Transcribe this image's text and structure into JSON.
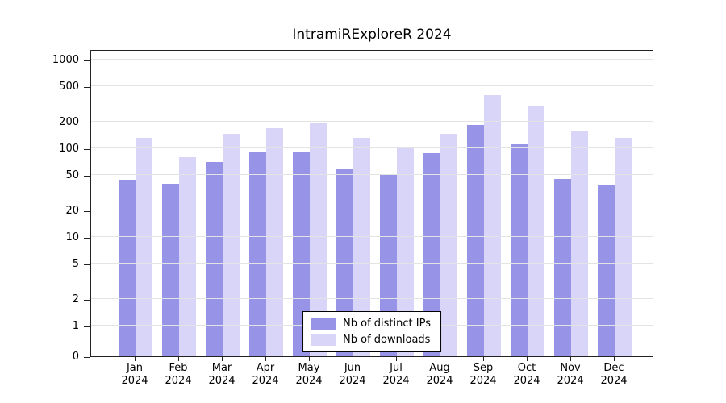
{
  "chart_data": {
    "type": "bar",
    "title": "IntramiRExploreR 2024",
    "categories": [
      "Jan 2024",
      "Feb 2024",
      "Mar 2024",
      "Apr 2024",
      "May 2024",
      "Jun 2024",
      "Jul 2024",
      "Aug 2024",
      "Sep 2024",
      "Oct 2024",
      "Nov 2024",
      "Dec 2024"
    ],
    "series": [
      {
        "name": "Nb of distinct IPs",
        "color": "#9794e8",
        "values": [
          44,
          40,
          70,
          90,
          92,
          58,
          50,
          88,
          185,
          110,
          45,
          38
        ]
      },
      {
        "name": "Nb of downloads",
        "color": "#d8d5f8",
        "values": [
          130,
          80,
          145,
          170,
          190,
          130,
          100,
          145,
          400,
          300,
          160,
          130
        ]
      }
    ],
    "y_ticks": [
      0,
      1,
      2,
      5,
      10,
      20,
      50,
      100,
      200,
      500,
      1000
    ],
    "y_scale": "symlog",
    "ylim": [
      0,
      1150
    ],
    "xlabel": "",
    "ylabel": "",
    "grid": true,
    "legend_position": "bottom-center-inside"
  }
}
